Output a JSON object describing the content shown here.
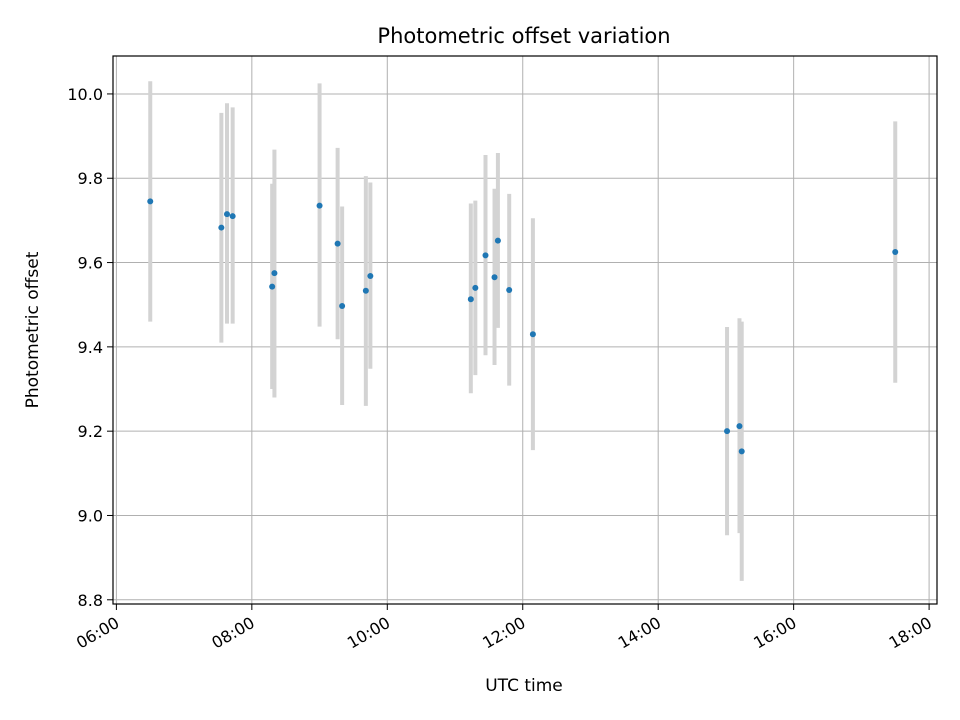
{
  "chart_data": {
    "type": "scatter",
    "title": "Photometric offset variation",
    "xlabel": "UTC time",
    "ylabel": "Photometric offset",
    "x_unit": "UTC hours",
    "xlim": [
      "05:57",
      "18:07"
    ],
    "ylim": [
      8.79,
      10.09
    ],
    "xticks": [
      "06:00",
      "08:00",
      "10:00",
      "12:00",
      "14:00",
      "16:00",
      "18:00"
    ],
    "yticks": [
      "8.8",
      "9.0",
      "9.2",
      "9.4",
      "9.6",
      "9.8",
      "10.0"
    ],
    "grid": true,
    "point_color": "#1f77b4",
    "errorbar_color": "#d3d3d3",
    "points": [
      {
        "x": "06:30",
        "y": 9.745,
        "low": 9.46,
        "high": 10.03
      },
      {
        "x": "07:33",
        "y": 9.683,
        "low": 9.41,
        "high": 9.955
      },
      {
        "x": "07:38",
        "y": 9.715,
        "low": 9.455,
        "high": 9.978
      },
      {
        "x": "07:43",
        "y": 9.71,
        "low": 9.455,
        "high": 9.968
      },
      {
        "x": "08:18",
        "y": 9.543,
        "low": 9.3,
        "high": 9.787
      },
      {
        "x": "08:20",
        "y": 9.575,
        "low": 9.28,
        "high": 9.868
      },
      {
        "x": "09:00",
        "y": 9.735,
        "low": 9.448,
        "high": 10.025
      },
      {
        "x": "09:16",
        "y": 9.645,
        "low": 9.418,
        "high": 9.872
      },
      {
        "x": "09:20",
        "y": 9.497,
        "low": 9.262,
        "high": 9.733
      },
      {
        "x": "09:41",
        "y": 9.533,
        "low": 9.26,
        "high": 9.805
      },
      {
        "x": "09:45",
        "y": 9.568,
        "low": 9.348,
        "high": 9.79
      },
      {
        "x": "11:14",
        "y": 9.513,
        "low": 9.29,
        "high": 9.74
      },
      {
        "x": "11:18",
        "y": 9.54,
        "low": 9.333,
        "high": 9.747
      },
      {
        "x": "11:27",
        "y": 9.617,
        "low": 9.38,
        "high": 9.855
      },
      {
        "x": "11:35",
        "y": 9.565,
        "low": 9.357,
        "high": 9.775
      },
      {
        "x": "11:38",
        "y": 9.652,
        "low": 9.445,
        "high": 9.86
      },
      {
        "x": "11:48",
        "y": 9.535,
        "low": 9.308,
        "high": 9.763
      },
      {
        "x": "12:09",
        "y": 9.43,
        "low": 9.155,
        "high": 9.705
      },
      {
        "x": "15:01",
        "y": 9.2,
        "low": 8.953,
        "high": 9.447
      },
      {
        "x": "15:12",
        "y": 9.212,
        "low": 8.958,
        "high": 9.468
      },
      {
        "x": "15:14",
        "y": 9.152,
        "low": 8.845,
        "high": 9.46
      },
      {
        "x": "17:30",
        "y": 9.625,
        "low": 9.315,
        "high": 9.935
      }
    ]
  }
}
